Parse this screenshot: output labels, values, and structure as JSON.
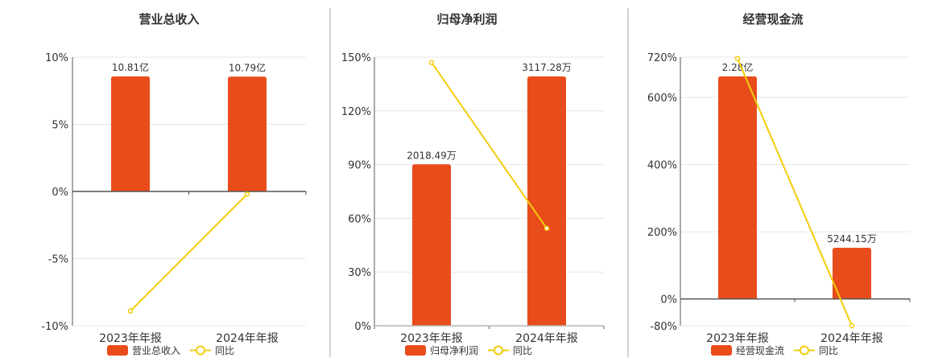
{
  "colors": {
    "bar": "#E84C1B",
    "line": "#F2CC0C",
    "grid": "#E6E6E6",
    "axis": "#555555",
    "divider": "#AAAAAA",
    "text": "#333333"
  },
  "chart_data": [
    {
      "type": "bar",
      "title": "营业总收入",
      "categories": [
        "2023年年报",
        "2024年年报"
      ],
      "bar_values": [
        10.81,
        10.79
      ],
      "bar_labels": [
        "10.81亿",
        "10.79亿"
      ],
      "line_values": [
        -8.9,
        -0.2
      ],
      "y_ticks": [
        "10%",
        "5%",
        "0%",
        "-5%",
        "-10%"
      ],
      "ylim": [
        -10,
        10
      ],
      "bar_max": 10.81,
      "legend": [
        "营业总收入",
        "同比"
      ],
      "legend_position": "bottom",
      "grid": true
    },
    {
      "type": "bar",
      "title": "归母净利润",
      "categories": [
        "2023年年报",
        "2024年年报"
      ],
      "bar_values": [
        2018.49,
        3117.28
      ],
      "bar_labels": [
        "2018.49万",
        "3117.28万"
      ],
      "line_values": [
        147,
        54.4
      ],
      "y_ticks": [
        "150%",
        "120%",
        "90%",
        "60%",
        "30%",
        "0%"
      ],
      "ylim": [
        0,
        150
      ],
      "bar_max": 3117.28,
      "legend": [
        "归母净利润",
        "同比"
      ],
      "legend_position": "bottom",
      "grid": true
    },
    {
      "type": "bar",
      "title": "经营现金流",
      "categories": [
        "2023年年报",
        "2024年年报"
      ],
      "bar_values": [
        22800,
        5244.15
      ],
      "bar_labels": [
        "2.28亿",
        "5244.15万"
      ],
      "line_values": [
        716,
        -80
      ],
      "y_ticks": [
        "720%",
        "600%",
        "400%",
        "200%",
        "0%",
        "-80%"
      ],
      "y_tick_values": [
        720,
        600,
        400,
        200,
        0,
        -80
      ],
      "ylim": [
        -80,
        720
      ],
      "bar_max": 22800,
      "legend": [
        "经营现金流",
        "同比"
      ],
      "legend_position": "bottom",
      "grid": true
    }
  ]
}
